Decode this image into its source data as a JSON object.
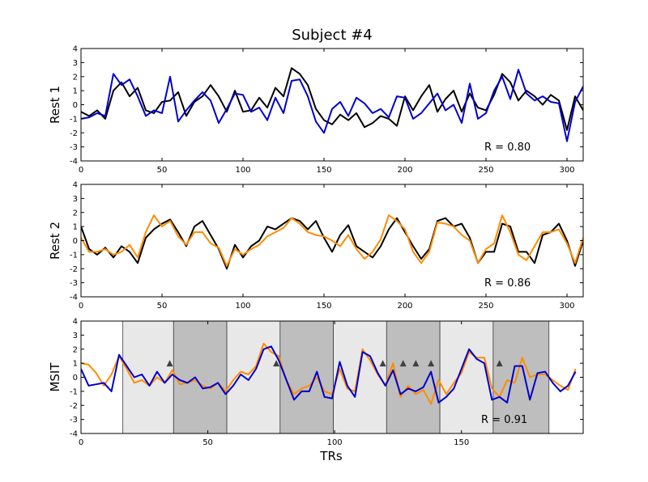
{
  "chart_data": [
    {
      "type": "line",
      "title": "Subject #4",
      "ylabel": "Rest 1",
      "xlim": [
        0,
        310
      ],
      "ylim": [
        -4,
        4
      ],
      "xticks": [
        0,
        50,
        100,
        150,
        200,
        250,
        300
      ],
      "yticks": [
        -4,
        -3,
        -2,
        -1,
        0,
        1,
        2,
        3,
        4
      ],
      "annotation": "R = 0.80",
      "x": [
        0,
        5,
        10,
        15,
        20,
        25,
        30,
        35,
        40,
        45,
        50,
        55,
        60,
        65,
        70,
        75,
        80,
        85,
        90,
        95,
        100,
        105,
        110,
        115,
        120,
        125,
        130,
        135,
        140,
        145,
        150,
        155,
        160,
        165,
        170,
        175,
        180,
        185,
        190,
        195,
        200,
        205,
        210,
        215,
        220,
        225,
        230,
        235,
        240,
        245,
        250,
        255,
        260,
        265,
        270,
        275,
        280,
        285,
        290,
        295,
        300,
        305,
        310
      ],
      "series": [
        {
          "color": "#000000",
          "values": [
            -0.5,
            -0.8,
            -0.4,
            -1.0,
            1.0,
            1.6,
            0.6,
            1.2,
            -0.4,
            -0.6,
            0.2,
            0.3,
            0.9,
            -0.8,
            0.2,
            0.6,
            1.4,
            0.6,
            -0.5,
            1.0,
            -0.5,
            -0.4,
            0.5,
            -0.2,
            1.2,
            0.6,
            2.6,
            2.2,
            1.4,
            -0.3,
            -1.1,
            -1.4,
            -0.7,
            -1.1,
            -0.6,
            -1.6,
            -1.3,
            -0.8,
            -1.0,
            -1.5,
            0.6,
            -0.4,
            0.6,
            1.4,
            -0.5,
            0.4,
            1.0,
            -0.5,
            0.8,
            -0.2,
            -0.4,
            0.7,
            2.2,
            1.6,
            0.3,
            1.0,
            0.6,
            0.0,
            0.7,
            0.3,
            -1.8,
            0.6,
            -0.4
          ]
        },
        {
          "color": "#0000cc",
          "values": [
            -1.0,
            -0.9,
            -0.6,
            -0.8,
            2.2,
            1.4,
            1.8,
            0.6,
            -0.8,
            -0.4,
            -0.6,
            2.0,
            -1.2,
            -0.4,
            0.3,
            0.9,
            0.3,
            -1.3,
            -0.3,
            0.8,
            0.7,
            -0.5,
            -0.2,
            -1.1,
            0.5,
            -0.6,
            1.7,
            1.8,
            0.6,
            -1.2,
            -2.0,
            -0.3,
            0.2,
            -0.8,
            0.5,
            0.1,
            -0.6,
            -0.3,
            -0.9,
            0.6,
            0.5,
            -1.0,
            -0.6,
            0.1,
            0.8,
            -0.4,
            0.0,
            -1.3,
            1.5,
            -1.0,
            -0.6,
            1.0,
            2.0,
            0.4,
            2.5,
            0.8,
            0.3,
            0.6,
            0.2,
            0.1,
            -2.6,
            0.2,
            1.3
          ]
        }
      ]
    },
    {
      "type": "line",
      "ylabel": "Rest 2",
      "xlim": [
        0,
        310
      ],
      "ylim": [
        -4,
        4
      ],
      "xticks": [
        0,
        50,
        100,
        150,
        200,
        250,
        300
      ],
      "yticks": [
        -4,
        -3,
        -2,
        -1,
        0,
        1,
        2,
        3,
        4
      ],
      "annotation": "R = 0.86",
      "x": [
        0,
        5,
        10,
        15,
        20,
        25,
        30,
        35,
        40,
        45,
        50,
        55,
        60,
        65,
        70,
        75,
        80,
        85,
        90,
        95,
        100,
        105,
        110,
        115,
        120,
        125,
        130,
        135,
        140,
        145,
        150,
        155,
        160,
        165,
        170,
        175,
        180,
        185,
        190,
        195,
        200,
        205,
        210,
        215,
        220,
        225,
        230,
        235,
        240,
        245,
        250,
        255,
        260,
        265,
        270,
        275,
        280,
        285,
        290,
        295,
        300,
        305,
        310
      ],
      "series": [
        {
          "color": "#000000",
          "values": [
            1.0,
            -0.6,
            -1.0,
            -0.5,
            -1.2,
            -0.4,
            -0.8,
            -1.6,
            0.2,
            0.8,
            1.2,
            1.5,
            0.6,
            -0.4,
            1.0,
            1.4,
            0.4,
            -0.6,
            -2.0,
            -0.3,
            -1.2,
            -0.4,
            0.0,
            1.0,
            0.8,
            1.2,
            1.6,
            1.4,
            0.8,
            1.4,
            0.2,
            -0.8,
            0.4,
            1.1,
            -0.4,
            -0.8,
            -1.2,
            -0.4,
            0.8,
            1.6,
            0.6,
            -0.4,
            -1.3,
            -0.6,
            1.4,
            1.6,
            1.0,
            1.2,
            0.2,
            -1.6,
            -0.8,
            -0.8,
            1.2,
            1.0,
            -0.8,
            -0.8,
            -1.6,
            0.4,
            0.6,
            1.2,
            0.0,
            -1.8,
            0.0
          ]
        },
        {
          "color": "#ff8c00",
          "values": [
            0.2,
            -0.8,
            -0.8,
            -0.6,
            -1.0,
            -0.8,
            -0.3,
            -1.2,
            0.6,
            1.8,
            1.0,
            1.4,
            0.3,
            -0.3,
            0.6,
            0.6,
            -0.2,
            -0.5,
            -1.8,
            -0.6,
            -1.0,
            -0.6,
            -0.3,
            0.3,
            0.6,
            0.9,
            1.6,
            1.2,
            0.6,
            0.4,
            0.3,
            0.0,
            -0.4,
            0.4,
            -0.6,
            -1.3,
            -0.8,
            0.1,
            1.8,
            1.4,
            0.8,
            -0.8,
            -1.6,
            -0.8,
            1.3,
            1.2,
            1.0,
            0.4,
            0.0,
            -1.6,
            -0.6,
            -0.2,
            1.8,
            0.6,
            -1.0,
            -1.4,
            -0.4,
            0.6,
            0.6,
            0.8,
            -0.2,
            -1.6,
            0.2
          ]
        }
      ]
    },
    {
      "type": "line",
      "ylabel": "MSIT",
      "xlabel": "TRs",
      "xlim": [
        0,
        198
      ],
      "ylim": [
        -4,
        4
      ],
      "xticks": [
        0,
        50,
        100,
        150
      ],
      "yticks": [
        -4,
        -3,
        -2,
        -1,
        0,
        1,
        2,
        3,
        4
      ],
      "annotation": "R = 0.91",
      "blocks": [
        {
          "start": 16.5,
          "end": 36.5,
          "shade": "#e8e8e8"
        },
        {
          "start": 36.5,
          "end": 57.5,
          "shade": "#bebebe"
        },
        {
          "start": 57.5,
          "end": 78.5,
          "shade": "#e8e8e8"
        },
        {
          "start": 78.5,
          "end": 99.5,
          "shade": "#bebebe"
        },
        {
          "start": 99.5,
          "end": 120.5,
          "shade": "#e8e8e8"
        },
        {
          "start": 120.5,
          "end": 141.5,
          "shade": "#bebebe"
        },
        {
          "start": 141.5,
          "end": 162.5,
          "shade": "#e8e8e8"
        },
        {
          "start": 162.5,
          "end": 184.5,
          "shade": "#bebebe"
        }
      ],
      "markers": {
        "y": 1.0,
        "color": "#404040",
        "x": [
          35,
          77,
          119,
          127,
          132,
          138,
          165
        ]
      },
      "x": [
        0,
        3,
        6,
        9,
        12,
        15,
        18,
        21,
        24,
        27,
        30,
        33,
        36,
        39,
        42,
        45,
        48,
        51,
        54,
        57,
        60,
        63,
        66,
        69,
        72,
        75,
        78,
        81,
        84,
        87,
        90,
        93,
        96,
        99,
        102,
        105,
        108,
        111,
        114,
        117,
        120,
        123,
        126,
        129,
        132,
        135,
        138,
        141,
        144,
        147,
        150,
        153,
        156,
        159,
        162,
        165,
        168,
        171,
        174,
        177,
        180,
        183,
        186,
        189,
        192,
        195
      ],
      "series": [
        {
          "color": "#ff8c00",
          "values": [
            1.0,
            0.9,
            0.3,
            -0.6,
            0.2,
            1.5,
            0.6,
            -0.4,
            -0.2,
            -0.6,
            0.0,
            -0.4,
            0.5,
            -0.5,
            -0.4,
            -0.2,
            -0.6,
            -0.8,
            -0.4,
            -1.0,
            -0.2,
            0.4,
            0.2,
            0.8,
            2.4,
            1.8,
            1.5,
            -0.2,
            -1.2,
            -0.8,
            -0.6,
            0.0,
            -1.0,
            -1.2,
            0.6,
            -0.8,
            -1.0,
            2.0,
            1.2,
            0.2,
            -0.6,
            1.0,
            -1.4,
            -0.6,
            -1.2,
            -0.9,
            -1.9,
            -0.2,
            -1.2,
            -0.4,
            0.3,
            1.8,
            1.4,
            1.4,
            -0.8,
            -1.4,
            -0.2,
            -0.4,
            1.4,
            0.0,
            0.2,
            0.2,
            -0.2,
            -0.6,
            -0.9,
            0.6
          ]
        },
        {
          "color": "#0000cc",
          "values": [
            0.6,
            -0.6,
            -0.5,
            -0.4,
            -1.0,
            1.6,
            0.8,
            0.0,
            0.2,
            -0.6,
            0.4,
            -0.4,
            0.2,
            -0.2,
            -0.4,
            0.0,
            -0.8,
            -0.7,
            -0.4,
            -1.2,
            -0.6,
            0.2,
            -0.2,
            0.6,
            2.0,
            2.2,
            1.2,
            -0.2,
            -1.6,
            -1.0,
            -1.0,
            0.4,
            -1.4,
            -1.5,
            1.1,
            -0.6,
            -1.4,
            1.8,
            1.5,
            0.3,
            -0.6,
            0.5,
            -1.2,
            -0.8,
            -1.0,
            -0.7,
            0.4,
            -1.8,
            -1.4,
            -0.8,
            0.6,
            2.0,
            1.3,
            1.0,
            -1.6,
            -1.4,
            -1.8,
            0.8,
            0.8,
            -1.6,
            0.3,
            0.4,
            -0.4,
            -1.0,
            -0.6,
            0.4
          ]
        }
      ]
    }
  ]
}
